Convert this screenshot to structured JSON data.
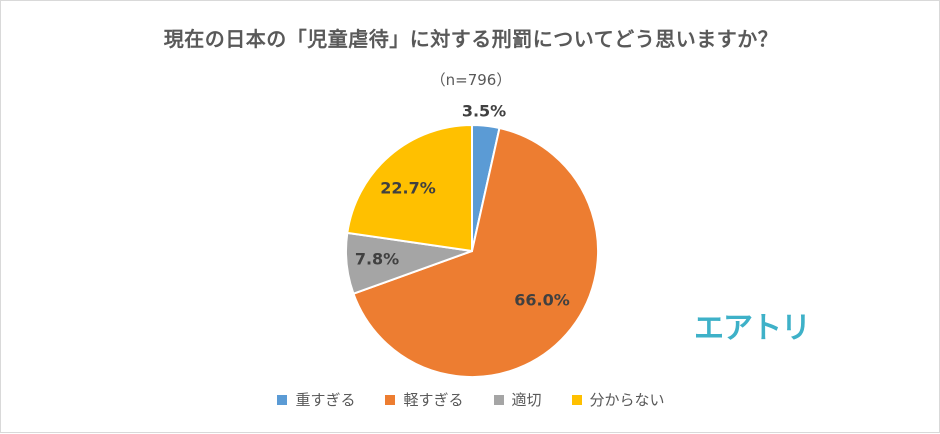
{
  "title": "現在の日本の「児童虐待」に対する刑罰についてどう思いますか？",
  "sample": "（n=796）",
  "brand": "エアトリ",
  "chart_data": {
    "type": "pie",
    "title": "現在の日本の「児童虐待」に対する刑罰についてどう思いますか？",
    "subtitle": "（n=796）",
    "categories": [
      "重すぎる",
      "軽すぎる",
      "適切",
      "分からない"
    ],
    "values": [
      3.5,
      66.0,
      7.8,
      22.7
    ],
    "labels": [
      "3.5%",
      "66.0%",
      "7.8%",
      "22.7%"
    ],
    "colors": [
      "#5b9bd5",
      "#ed7d31",
      "#a5a5a5",
      "#ffc000"
    ],
    "start": "12 o'clock, clockwise",
    "legend_position": "bottom"
  }
}
